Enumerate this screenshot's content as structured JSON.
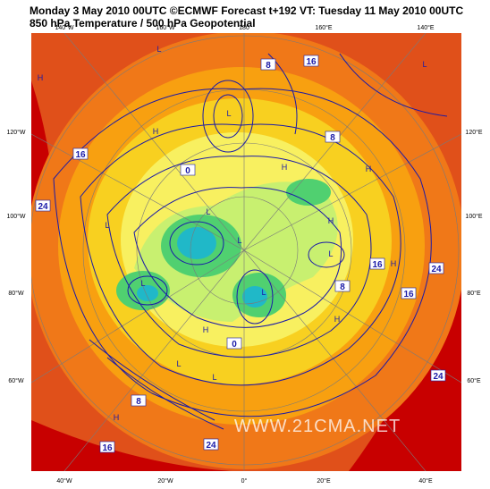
{
  "header": {
    "line1": "Monday 3 May 2010 00UTC ©ECMWF Forecast t+192 VT: Tuesday 11 May 2010 00UTC",
    "line2": "850 hPa Temperature / 500 hPa Geopotential"
  },
  "longitude_labels": {
    "top": [
      "140°W",
      "160°W",
      "180",
      "160°E",
      "140°E"
    ],
    "left": [
      "120°W",
      "100°W",
      "80°W",
      "60°W"
    ],
    "right": [
      "120°E",
      "100°E",
      "80°E",
      "60°E"
    ],
    "bottom": [
      "40°W",
      "20°W",
      "0°",
      "20°E",
      "40°E"
    ]
  },
  "contour_labels": [
    "16",
    "24",
    "8",
    "16",
    "16",
    "24",
    "16",
    "24",
    "16",
    "24",
    "8",
    "8",
    "0",
    "0",
    "8"
  ],
  "centers": [
    "L",
    "H",
    "L",
    "H",
    "L",
    "H",
    "L",
    "H",
    "L",
    "H",
    "L",
    "L",
    "H",
    "L",
    "H",
    "L",
    "H",
    "L",
    "H",
    "L"
  ],
  "watermark": "WWW.21CMA.NET"
}
